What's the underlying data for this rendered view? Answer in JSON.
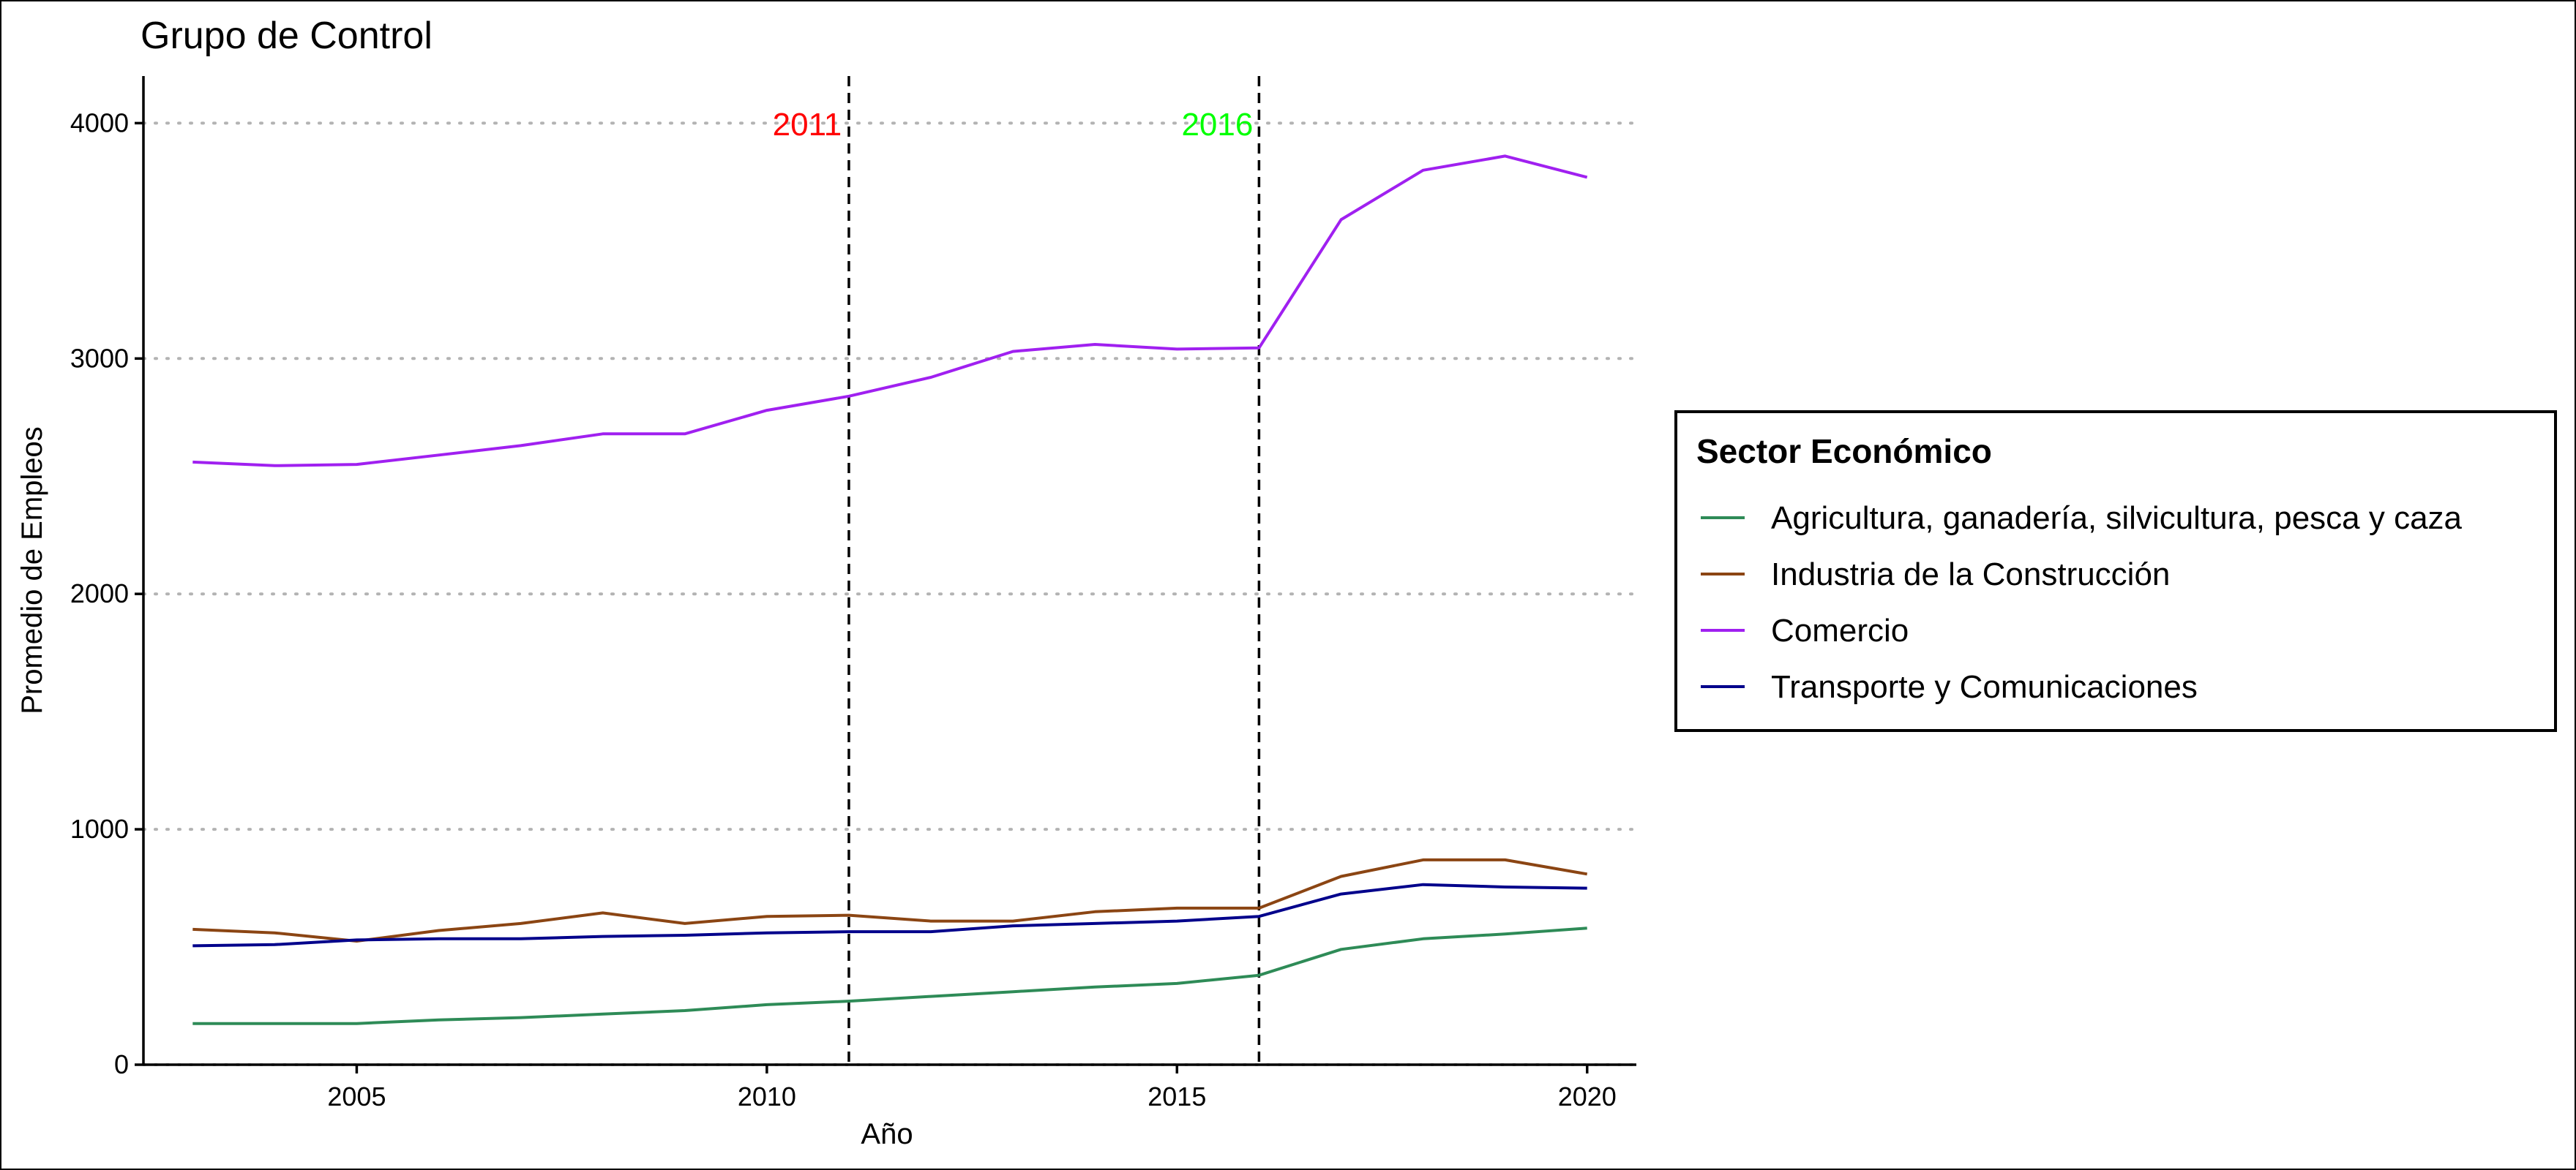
{
  "chart_data": {
    "type": "line",
    "title": "Grupo de Control",
    "xlabel": "Año",
    "ylabel": "Promedio de Empleos",
    "xlim": [
      2002.4,
      2020.6
    ],
    "ylim": [
      0,
      4200
    ],
    "xticks": [
      2005,
      2010,
      2015,
      2020
    ],
    "yticks": [
      0,
      1000,
      2000,
      3000,
      4000
    ],
    "grid": "horizontal-dotted",
    "x": [
      2003,
      2004,
      2005,
      2006,
      2007,
      2008,
      2009,
      2010,
      2011,
      2012,
      2013,
      2014,
      2015,
      2016,
      2017,
      2018,
      2019,
      2020
    ],
    "series": [
      {
        "name": "Agricultura, ganadería, silvicultura, pesca y caza",
        "color": "#2E8B57",
        "values": [
          175,
          175,
          175,
          190,
          200,
          215,
          230,
          255,
          270,
          290,
          310,
          330,
          345,
          380,
          490,
          535,
          555,
          580
        ]
      },
      {
        "name": "Industria de la Construcción",
        "color": "#8B4513",
        "values": [
          575,
          560,
          525,
          570,
          600,
          645,
          600,
          630,
          635,
          610,
          610,
          650,
          665,
          665,
          800,
          870,
          870,
          810
        ]
      },
      {
        "name": "Comercio",
        "color": "#A020F0",
        "values": [
          2560,
          2545,
          2550,
          2590,
          2630,
          2680,
          2680,
          2780,
          2840,
          2920,
          3030,
          3060,
          3040,
          3045,
          3590,
          3800,
          3860,
          3770
        ]
      },
      {
        "name": "Transporte y Comunicaciones",
        "color": "#00008B",
        "values": [
          505,
          510,
          530,
          535,
          535,
          545,
          550,
          560,
          565,
          565,
          590,
          600,
          610,
          630,
          725,
          765,
          755,
          750
        ]
      }
    ],
    "vlines": [
      {
        "x": 2011,
        "label": "2011",
        "color": "#FF0000"
      },
      {
        "x": 2016,
        "label": "2016",
        "color": "#00FF00"
      }
    ],
    "legend": {
      "title": "Sector Económico",
      "position": "right"
    }
  }
}
